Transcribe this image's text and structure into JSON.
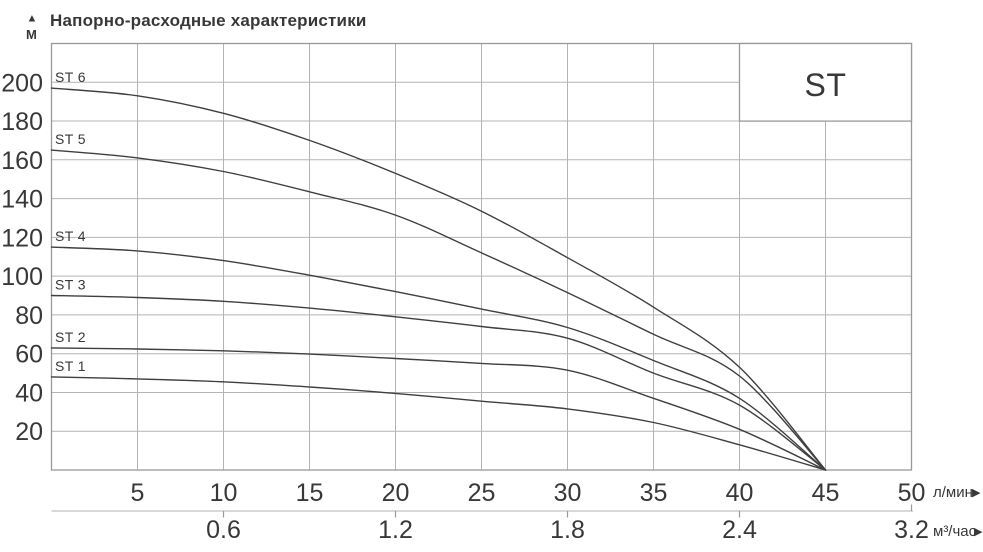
{
  "header": {
    "title": "Напорно-расходные характеристики",
    "y_unit": "М"
  },
  "icons": {
    "up_arrow": "▲",
    "right_arrow": "▶"
  },
  "legend_box": {
    "label": "ST"
  },
  "axes": {
    "x": {
      "unit": "л/мин",
      "ticks": [
        5,
        10,
        15,
        20,
        25,
        30,
        35,
        40,
        45,
        50
      ]
    },
    "x2": {
      "unit": "м³/час",
      "ticks": [
        "0.6",
        "1.2",
        "1.8",
        "2.4",
        "3.2"
      ],
      "tick_positions": [
        10,
        20,
        30,
        40,
        50
      ]
    },
    "y": {
      "ticks": [
        20,
        40,
        60,
        80,
        100,
        120,
        140,
        160,
        180,
        200
      ]
    }
  },
  "colors": {
    "curve": "#3f3f3f",
    "grid": "#b4b4b4",
    "border": "#999999",
    "axis2": "#c2c2c2",
    "text": "#383838"
  },
  "chart_data": {
    "type": "line",
    "title": "Напорно-расходные характеристики",
    "xlabel": "л/мин",
    "x2label": "м³/час",
    "ylabel": "М",
    "xlim": [
      0,
      50
    ],
    "ylim": [
      0,
      220
    ],
    "grid": true,
    "legend_position": "top-right",
    "legend_title": "ST",
    "x": [
      0,
      5,
      10,
      15,
      20,
      25,
      30,
      35,
      40,
      45
    ],
    "series": [
      {
        "name": "ST 6",
        "values": [
          197,
          193,
          184,
          170,
          153,
          133.5,
          109.5,
          84,
          53,
          0
        ]
      },
      {
        "name": "ST 5",
        "values": [
          165,
          161,
          154,
          143.5,
          131.5,
          112,
          91.5,
          70,
          48.5,
          0
        ]
      },
      {
        "name": "ST 4",
        "values": [
          115,
          113,
          108,
          100.5,
          92,
          83,
          73.5,
          56.5,
          37,
          0
        ]
      },
      {
        "name": "ST 3",
        "values": [
          90,
          89,
          87,
          83.5,
          79,
          74,
          68,
          50,
          33.5,
          0
        ]
      },
      {
        "name": "ST 2",
        "values": [
          63,
          62.4,
          61.5,
          59.8,
          57.5,
          55,
          51.5,
          37,
          21,
          0
        ]
      },
      {
        "name": "ST 1",
        "values": [
          48,
          47,
          45.5,
          42.8,
          39.5,
          35.5,
          31.5,
          24.5,
          13,
          0
        ]
      }
    ]
  }
}
